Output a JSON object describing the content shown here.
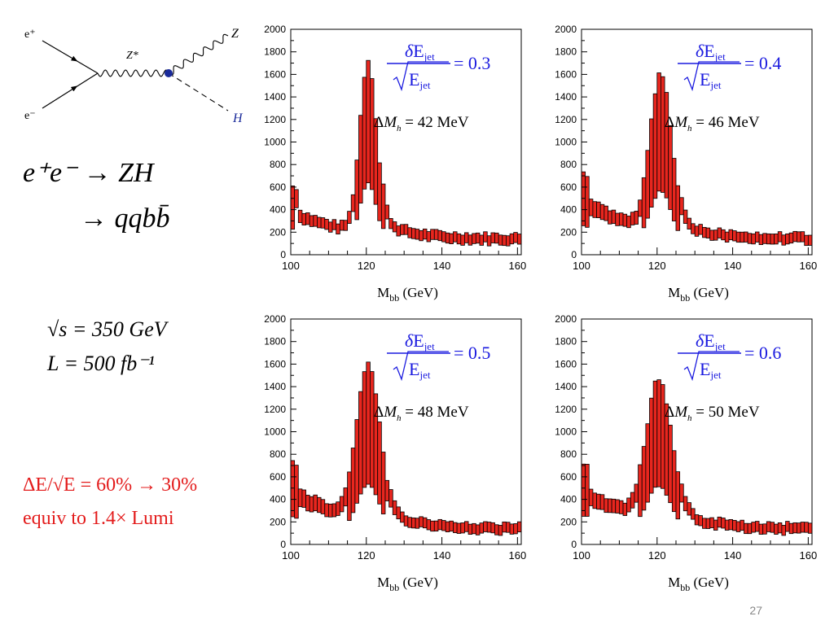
{
  "diagram": {
    "eplus": "e⁺",
    "eminus": "e⁻",
    "zstar": "Z*",
    "z": "Z",
    "h": "H"
  },
  "left_text": {
    "process_line1": "e⁺e⁻ → ZH",
    "process_line2": "→ qqbb̄",
    "energy": "√s = 350 GeV",
    "lumi": "L = 500 fb⁻¹",
    "note_line1": "ΔE/√E = 60% → 30%",
    "note_line2": "equiv to  1.4× Lumi"
  },
  "page_number": "27",
  "colors": {
    "fill": "#e8261e",
    "outline": "#000000",
    "resolution_text": "#1a1adf",
    "note_text": "#e31b1b"
  },
  "chart_data": [
    {
      "type": "bar",
      "xlabel": "M_bb (GeV)",
      "xlim": [
        100,
        161
      ],
      "ylim": [
        0,
        2000
      ],
      "xticks": [
        100,
        120,
        140,
        160
      ],
      "yticks": [
        0,
        200,
        400,
        600,
        800,
        1000,
        1200,
        1400,
        1600,
        1800,
        2000
      ],
      "resolution": "δE_jet/√E_jet = 0.3",
      "resolution_value": "0.3",
      "mass_resolution": "ΔM_h = 42 MeV",
      "mass_resolution_value": "42 MeV",
      "peak_x": 120.5,
      "peak_y": 1820,
      "width": 2.2,
      "bg_start": 440,
      "bg_end": 180,
      "band": [
        0.34,
        0.28
      ]
    },
    {
      "type": "bar",
      "xlabel": "M_bb (GeV)",
      "xlim": [
        100,
        161
      ],
      "ylim": [
        0,
        2000
      ],
      "xticks": [
        100,
        120,
        140,
        160
      ],
      "yticks": [
        0,
        200,
        400,
        600,
        800,
        1000,
        1200,
        1400,
        1600,
        1800,
        2000
      ],
      "resolution": "δE_jet/√E_jet = 0.4",
      "resolution_value": "0.4",
      "mass_resolution": "ΔM_h = 46 MeV",
      "mass_resolution_value": "46 MeV",
      "peak_x": 121.0,
      "peak_y": 1680,
      "width": 2.8,
      "bg_start": 560,
      "bg_end": 180,
      "band": [
        0.45,
        0.3
      ]
    },
    {
      "type": "bar",
      "xlabel": "M_bb (GeV)",
      "xlim": [
        100,
        161
      ],
      "ylim": [
        0,
        2000
      ],
      "xticks": [
        100,
        120,
        140,
        160
      ],
      "yticks": [
        0,
        200,
        400,
        600,
        800,
        1000,
        1200,
        1400,
        1600,
        1800,
        2000
      ],
      "resolution": "δE_jet/√E_jet = 0.5",
      "resolution_value": "0.5",
      "mass_resolution": "ΔM_h = 48 MeV",
      "mass_resolution_value": "48 MeV",
      "peak_x": 120.5,
      "peak_y": 1680,
      "width": 3.0,
      "bg_start": 560,
      "bg_end": 180,
      "band": [
        0.42,
        0.32
      ]
    },
    {
      "type": "bar",
      "xlabel": "M_bb (GeV)",
      "xlim": [
        100,
        161
      ],
      "ylim": [
        0,
        2000
      ],
      "xticks": [
        100,
        120,
        140,
        160
      ],
      "yticks": [
        0,
        200,
        400,
        600,
        800,
        1000,
        1200,
        1400,
        1600,
        1800,
        2000
      ],
      "resolution": "δE_jet/√E_jet = 0.6",
      "resolution_value": "0.6",
      "mass_resolution": "ΔM_h = 50 MeV",
      "mass_resolution_value": "50 MeV",
      "peak_x": 120.5,
      "peak_y": 1540,
      "width": 3.3,
      "bg_start": 560,
      "bg_end": 180,
      "band": [
        0.42,
        0.3
      ]
    }
  ]
}
